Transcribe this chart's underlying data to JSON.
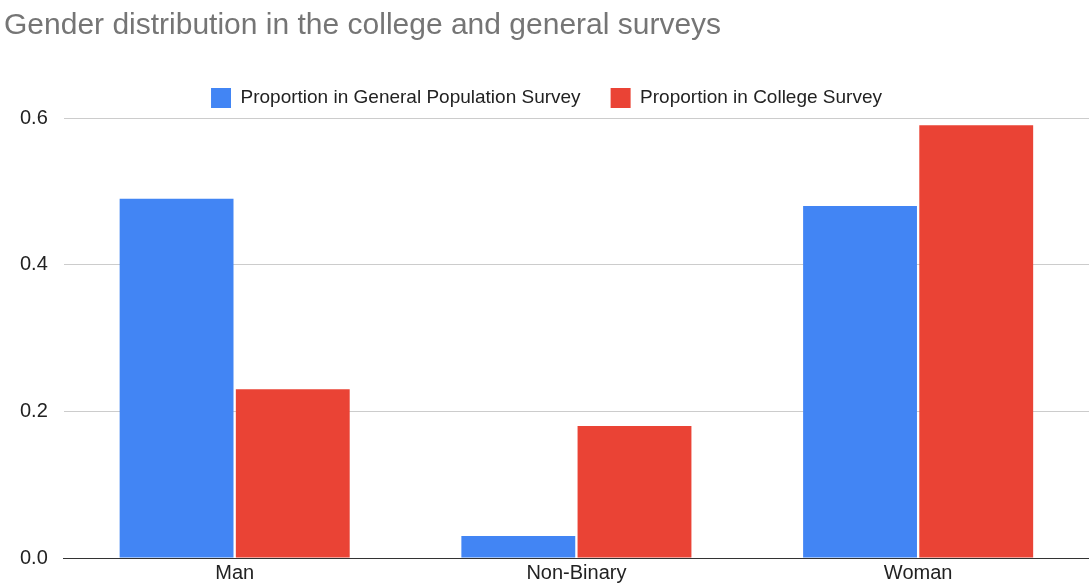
{
  "chart_data": {
    "type": "bar",
    "title": "Gender distribution in the college and general surveys",
    "categories": [
      "Man",
      "Non-Binary",
      "Woman"
    ],
    "series": [
      {
        "name": "Proportion in General Population Survey",
        "color": "#4285f4",
        "values": [
          0.49,
          0.03,
          0.48
        ]
      },
      {
        "name": "Proportion in College Survey",
        "color": "#ea4335",
        "values": [
          0.23,
          0.18,
          0.59
        ]
      }
    ],
    "ylim": [
      0,
      0.6
    ],
    "yticks": [
      {
        "value": 0,
        "label": "0.0"
      },
      {
        "value": 0.2,
        "label": "0.2"
      },
      {
        "value": 0.4,
        "label": "0.4"
      },
      {
        "value": 0.6,
        "label": "0.6"
      }
    ],
    "grid": "y",
    "legend": "top"
  }
}
